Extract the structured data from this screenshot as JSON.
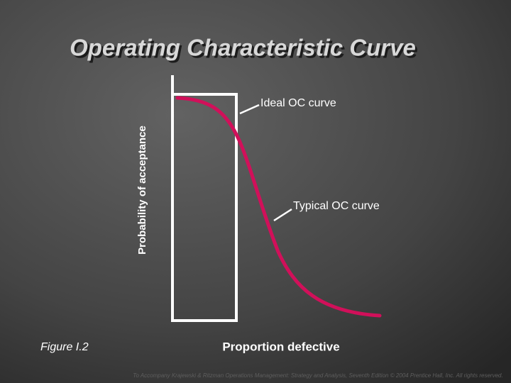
{
  "title": "Operating Characteristic Curve",
  "axes": {
    "y_label": "Probability of acceptance",
    "x_label": "Proportion defective"
  },
  "annotations": {
    "ideal": "Ideal OC curve",
    "typical": "Typical OC curve"
  },
  "figure_label": "Figure I.2",
  "footer": "To Accompany Krajewski & Ritzman Operations Management: Strategy and Analysis, Seventh Edition © 2004 Prentice Hall, Inc. All rights reserved."
}
